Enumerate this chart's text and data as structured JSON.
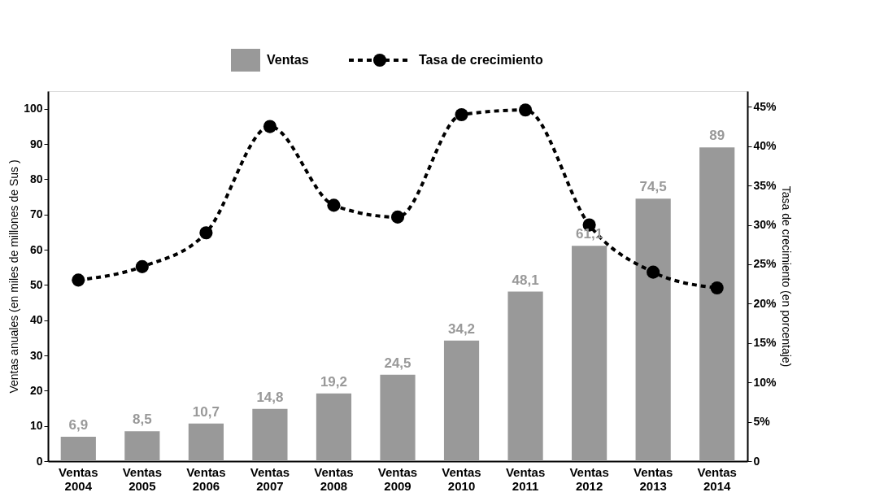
{
  "chart_data": {
    "type": "bar",
    "categories": [
      "Ventas 2004",
      "Ventas 2005",
      "Ventas 2006",
      "Ventas 2007",
      "Ventas 2008",
      "Ventas 2009",
      "Ventas 2010",
      "Ventas 2011",
      "Ventas 2012",
      "Ventas 2013",
      "Ventas 2014"
    ],
    "ylabel": "Ventas anuales (en miles de millones de Sus )",
    "y2label": "Tasa de crecimiento (en porcentaje)",
    "ylim": [
      0,
      105
    ],
    "yticks": [
      0,
      10,
      20,
      30,
      40,
      50,
      60,
      70,
      80,
      90,
      100
    ],
    "y2lim": [
      0,
      47
    ],
    "y2ticks": [
      {
        "value": 0,
        "label": "0"
      },
      {
        "value": 5,
        "label": "5%"
      },
      {
        "value": 10,
        "label": "10%"
      },
      {
        "value": 15,
        "label": "15%"
      },
      {
        "value": 20,
        "label": "20%"
      },
      {
        "value": 25,
        "label": "25%"
      },
      {
        "value": 30,
        "label": "30%"
      },
      {
        "value": 35,
        "label": "35%"
      },
      {
        "value": 40,
        "label": "40%"
      },
      {
        "value": 45,
        "label": "45%"
      }
    ],
    "legend": "top",
    "grid": false,
    "series": [
      {
        "name": "Ventas",
        "color": "#999999",
        "values": [
          6.9,
          8.5,
          10.7,
          14.8,
          19.2,
          24.5,
          34.2,
          48.1,
          61.1,
          74.5,
          89
        ],
        "value_labels": [
          "6,9",
          "8,5",
          "10,7",
          "14,8",
          "19,2",
          "24,5",
          "34,2",
          "48,1",
          "61,1",
          "74,5",
          "89"
        ]
      },
      {
        "name": "Tasa de crecimiento",
        "type": "line",
        "axis": "y2",
        "color": "#000000",
        "marker": "circle",
        "line_style": "dashed",
        "values": [
          23,
          24.7,
          29,
          42.5,
          32.5,
          31,
          44,
          44.6,
          30,
          24,
          22
        ]
      }
    ]
  }
}
